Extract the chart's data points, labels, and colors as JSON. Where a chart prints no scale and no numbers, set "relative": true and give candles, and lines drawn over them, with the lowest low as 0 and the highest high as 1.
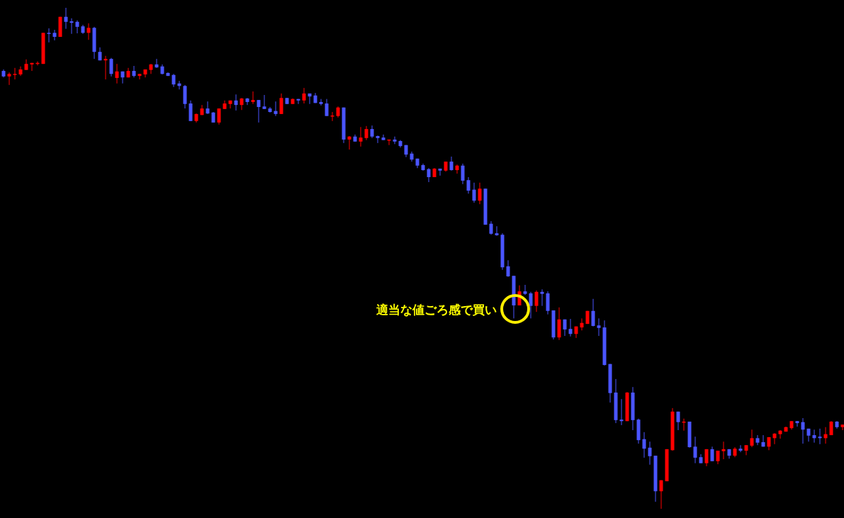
{
  "chart_data": {
    "type": "candlestick",
    "relative": true,
    "annotations": [
      "適当な値ごろ感で買い"
    ],
    "categories": [
      null,
      null,
      null,
      null,
      null,
      null,
      null,
      null,
      null,
      null,
      null,
      null,
      null,
      null,
      null,
      null,
      null,
      null,
      null,
      null,
      null,
      null,
      null,
      null,
      null,
      null,
      null,
      null,
      null,
      null,
      null,
      null,
      null,
      null,
      null,
      null,
      null,
      null,
      null,
      null,
      null,
      null,
      null,
      null,
      null,
      null,
      null,
      null,
      null,
      null,
      null,
      null,
      null,
      null,
      null,
      null,
      null,
      null,
      null,
      null,
      null,
      null,
      null,
      null,
      null,
      null,
      null,
      null,
      null,
      null,
      null,
      null,
      null,
      null,
      null,
      null,
      null,
      null,
      null,
      null,
      null,
      null,
      null,
      null,
      null,
      null,
      null,
      null,
      null,
      null,
      null,
      null,
      null,
      null,
      null,
      null,
      null,
      null,
      null,
      null,
      null,
      null,
      null,
      null,
      null,
      null,
      null,
      null,
      null,
      null,
      null,
      null,
      null,
      null,
      null,
      null,
      null,
      null,
      null,
      null,
      null,
      null,
      null,
      null,
      null,
      null,
      null,
      null,
      null,
      null,
      null,
      null,
      null,
      null,
      null,
      null,
      null,
      null,
      null,
      null,
      null,
      null,
      null,
      null,
      null,
      null,
      null,
      null,
      null
    ],
    "ohlc": [
      [
        0.874,
        0.877,
        0.861,
        0.863
      ],
      [
        0.863,
        0.871,
        0.846,
        0.868
      ],
      [
        0.867,
        0.88,
        0.857,
        0.868
      ],
      [
        0.867,
        0.883,
        0.864,
        0.877
      ],
      [
        0.876,
        0.897,
        0.876,
        0.888
      ],
      [
        0.887,
        0.89,
        0.874,
        0.89
      ],
      [
        0.888,
        0.893,
        0.885,
        0.89
      ],
      [
        0.888,
        0.95,
        0.888,
        0.95
      ],
      [
        0.95,
        0.959,
        0.931,
        0.949
      ],
      [
        0.95,
        0.956,
        0.935,
        0.942
      ],
      [
        0.942,
        0.982,
        0.942,
        0.982
      ],
      [
        0.982,
        1,
        0.958,
        0.972
      ],
      [
        0.973,
        0.979,
        0.948,
        0.97
      ],
      [
        0.972,
        0.975,
        0.949,
        0.962
      ],
      [
        0.963,
        0.966,
        0.948,
        0.95
      ],
      [
        0.95,
        0.969,
        0.936,
        0.96
      ],
      [
        0.96,
        0.962,
        0.898,
        0.912
      ],
      [
        0.912,
        0.921,
        0.895,
        0.895
      ],
      [
        0.895,
        0.904,
        0.857,
        0.898
      ],
      [
        0.898,
        0.9,
        0.863,
        0.868
      ],
      [
        0.86,
        0.888,
        0.849,
        0.873
      ],
      [
        0.873,
        0.873,
        0.849,
        0.861
      ],
      [
        0.861,
        0.88,
        0.861,
        0.874
      ],
      [
        0.874,
        0.884,
        0.861,
        0.864
      ],
      [
        0.864,
        0.868,
        0.857,
        0.868
      ],
      [
        0.867,
        0.877,
        0.861,
        0.877
      ],
      [
        0.876,
        0.888,
        0.868,
        0.887
      ],
      [
        0.887,
        0.898,
        0.88,
        0.881
      ],
      [
        0.883,
        0.887,
        0.867,
        0.868
      ],
      [
        0.87,
        0.871,
        0.864,
        0.864
      ],
      [
        0.866,
        0.868,
        0.842,
        0.847
      ],
      [
        0.849,
        0.854,
        0.837,
        0.844
      ],
      [
        0.844,
        0.846,
        0.799,
        0.808
      ],
      [
        0.809,
        0.815,
        0.774,
        0.774
      ],
      [
        0.774,
        0.789,
        0.771,
        0.788
      ],
      [
        0.786,
        0.806,
        0.786,
        0.799
      ],
      [
        0.799,
        0.813,
        0.788,
        0.789
      ],
      [
        0.791,
        0.792,
        0.771,
        0.771
      ],
      [
        0.771,
        0.799,
        0.767,
        0.799
      ],
      [
        0.798,
        0.815,
        0.798,
        0.809
      ],
      [
        0.808,
        0.815,
        0.799,
        0.815
      ],
      [
        0.815,
        0.827,
        0.795,
        0.806
      ],
      [
        0.806,
        0.82,
        0.796,
        0.819
      ],
      [
        0.819,
        0.82,
        0.806,
        0.812
      ],
      [
        0.812,
        0.833,
        0.808,
        0.816
      ],
      [
        0.816,
        0.816,
        0.771,
        0.802
      ],
      [
        0.803,
        0.826,
        0.798,
        0.798
      ],
      [
        0.799,
        0.802,
        0.791,
        0.792
      ],
      [
        0.794,
        0.813,
        0.784,
        0.788
      ],
      [
        0.788,
        0.829,
        0.788,
        0.82
      ],
      [
        0.82,
        0.82,
        0.808,
        0.808
      ],
      [
        0.808,
        0.819,
        0.808,
        0.818
      ],
      [
        0.818,
        0.818,
        0.808,
        0.815
      ],
      [
        0.815,
        0.84,
        0.809,
        0.829
      ],
      [
        0.829,
        0.829,
        0.808,
        0.823
      ],
      [
        0.825,
        0.83,
        0.81,
        0.81
      ],
      [
        0.812,
        0.818,
        0.805,
        0.808
      ],
      [
        0.809,
        0.818,
        0.784,
        0.784
      ],
      [
        0.784,
        0.792,
        0.774,
        0.785
      ],
      [
        0.784,
        0.803,
        0.781,
        0.801
      ],
      [
        0.801,
        0.801,
        0.73,
        0.737
      ],
      [
        0.737,
        0.744,
        0.717,
        0.743
      ],
      [
        0.743,
        0.747,
        0.733,
        0.733
      ],
      [
        0.733,
        0.762,
        0.723,
        0.741
      ],
      [
        0.74,
        0.764,
        0.736,
        0.758
      ],
      [
        0.758,
        0.765,
        0.74,
        0.743
      ],
      [
        0.744,
        0.745,
        0.73,
        0.74
      ],
      [
        0.741,
        0.747,
        0.736,
        0.736
      ],
      [
        0.736,
        0.737,
        0.726,
        0.737
      ],
      [
        0.737,
        0.743,
        0.728,
        0.733
      ],
      [
        0.734,
        0.736,
        0.721,
        0.724
      ],
      [
        0.726,
        0.726,
        0.702,
        0.707
      ],
      [
        0.709,
        0.713,
        0.693,
        0.697
      ],
      [
        0.699,
        0.699,
        0.68,
        0.685
      ],
      [
        0.686,
        0.689,
        0.675,
        0.676
      ],
      [
        0.678,
        0.68,
        0.652,
        0.662
      ],
      [
        0.662,
        0.68,
        0.662,
        0.679
      ],
      [
        0.679,
        0.679,
        0.665,
        0.675
      ],
      [
        0.675,
        0.693,
        0.673,
        0.693
      ],
      [
        0.693,
        0.703,
        0.675,
        0.676
      ],
      [
        0.676,
        0.687,
        0.669,
        0.685
      ],
      [
        0.685,
        0.689,
        0.648,
        0.655
      ],
      [
        0.656,
        0.662,
        0.629,
        0.635
      ],
      [
        0.637,
        0.651,
        0.611,
        0.615
      ],
      [
        0.615,
        0.651,
        0.608,
        0.639
      ],
      [
        0.639,
        0.639,
        0.567,
        0.567
      ],
      [
        0.569,
        0.574,
        0.547,
        0.549
      ],
      [
        0.55,
        0.564,
        0.545,
        0.546
      ],
      [
        0.547,
        0.55,
        0.477,
        0.482
      ],
      [
        0.484,
        0.496,
        0.463,
        0.464
      ],
      [
        0.465,
        0.465,
        0.38,
        0.406
      ],
      [
        0.406,
        0.446,
        0.406,
        0.434
      ],
      [
        0.434,
        0.447,
        0.427,
        0.429
      ],
      [
        0.43,
        0.433,
        0.38,
        0.405
      ],
      [
        0.405,
        0.436,
        0.393,
        0.433
      ],
      [
        0.433,
        0.438,
        0.405,
        0.429
      ],
      [
        0.43,
        0.434,
        0.388,
        0.395
      ],
      [
        0.396,
        0.396,
        0.338,
        0.342
      ],
      [
        0.342,
        0.402,
        0.337,
        0.378
      ],
      [
        0.378,
        0.378,
        0.345,
        0.358
      ],
      [
        0.359,
        0.379,
        0.344,
        0.349
      ],
      [
        0.349,
        0.364,
        0.341,
        0.364
      ],
      [
        0.362,
        0.38,
        0.356,
        0.371
      ],
      [
        0.369,
        0.395,
        0.369,
        0.395
      ],
      [
        0.395,
        0.419,
        0.364,
        0.365
      ],
      [
        0.366,
        0.38,
        0.345,
        0.361
      ],
      [
        0.362,
        0.376,
        0.286,
        0.287
      ],
      [
        0.289,
        0.289,
        0.212,
        0.231
      ],
      [
        0.232,
        0.259,
        0.171,
        0.177
      ],
      [
        0.178,
        0.219,
        0.167,
        0.175
      ],
      [
        0.175,
        0.233,
        0.175,
        0.232
      ],
      [
        0.232,
        0.243,
        0.157,
        0.177
      ],
      [
        0.178,
        0.18,
        0.13,
        0.137
      ],
      [
        0.139,
        0.153,
        0.102,
        0.12
      ],
      [
        0.122,
        0.134,
        0.088,
        0.105
      ],
      [
        0.106,
        0.106,
        0.014,
        0.035
      ],
      [
        0.035,
        0.057,
        0,
        0.057
      ],
      [
        0.055,
        0.119,
        0.055,
        0.119
      ],
      [
        0.117,
        0.201,
        0.116,
        0.194
      ],
      [
        0.194,
        0.194,
        0.157,
        0.173
      ],
      [
        0.173,
        0.18,
        0.156,
        0.174
      ],
      [
        0.174,
        0.174,
        0.122,
        0.123
      ],
      [
        0.124,
        0.144,
        0.091,
        0.102
      ],
      [
        0.103,
        0.109,
        0.091,
        0.091
      ],
      [
        0.091,
        0.119,
        0.085,
        0.119
      ],
      [
        0.119,
        0.124,
        0.095,
        0.095
      ],
      [
        0.095,
        0.116,
        0.089,
        0.116
      ],
      [
        0.115,
        0.134,
        0.099,
        0.119
      ],
      [
        0.119,
        0.119,
        0.1,
        0.106
      ],
      [
        0.106,
        0.123,
        0.103,
        0.12
      ],
      [
        0.12,
        0.127,
        0.113,
        0.116
      ],
      [
        0.116,
        0.127,
        0.107,
        0.127
      ],
      [
        0.126,
        0.158,
        0.123,
        0.141
      ],
      [
        0.141,
        0.147,
        0.127,
        0.132
      ],
      [
        0.133,
        0.147,
        0.124,
        0.124
      ],
      [
        0.124,
        0.143,
        0.117,
        0.143
      ],
      [
        0.141,
        0.151,
        0.129,
        0.15
      ],
      [
        0.149,
        0.157,
        0.14,
        0.156
      ],
      [
        0.154,
        0.164,
        0.154,
        0.163
      ],
      [
        0.161,
        0.175,
        0.158,
        0.175
      ],
      [
        0.175,
        0.175,
        0.164,
        0.171
      ],
      [
        0.173,
        0.181,
        0.13,
        0.158
      ],
      [
        0.16,
        0.16,
        0.134,
        0.146
      ],
      [
        0.147,
        0.158,
        0.132,
        0.141
      ],
      [
        0.144,
        0.16,
        0.129,
        0.141
      ],
      [
        0.141,
        0.163,
        0.13,
        0.149
      ],
      [
        0.147,
        0.175,
        0.147,
        0.174
      ],
      [
        0.174,
        0.175,
        0.16,
        0.163
      ],
      [
        0.163,
        0.168,
        0.157,
        0.168
      ]
    ],
    "colors": [
      "#4a55ff",
      "#ff0000",
      "#ff0000",
      "#ff0000",
      "#ff0000",
      "#ff0000",
      "#ff0000",
      "#ff0000",
      "#4a55ff",
      "#4a55ff",
      "#ff0000",
      "#4a55ff",
      "#4a55ff",
      "#4a55ff",
      "#4a55ff",
      "#ff0000",
      "#4a55ff",
      "#4a55ff",
      "#ff0000",
      "#4a55ff",
      "#ff0000",
      "#4a55ff",
      "#ff0000",
      "#4a55ff",
      "#ff0000",
      "#ff0000",
      "#ff0000",
      "#4a55ff",
      "#4a55ff",
      "#4a55ff",
      "#4a55ff",
      "#4a55ff",
      "#4a55ff",
      "#4a55ff",
      "#ff0000",
      "#ff0000",
      "#4a55ff",
      "#4a55ff",
      "#ff0000",
      "#ff0000",
      "#ff0000",
      "#4a55ff",
      "#ff0000",
      "#4a55ff",
      "#ff0000",
      "#4a55ff",
      "#4a55ff",
      "#4a55ff",
      "#4a55ff",
      "#ff0000",
      "#4a55ff",
      "#ff0000",
      "#4a55ff",
      "#ff0000",
      "#4a55ff",
      "#4a55ff",
      "#4a55ff",
      "#4a55ff",
      "#ff0000",
      "#ff0000",
      "#4a55ff",
      "#ff0000",
      "#4a55ff",
      "#ff0000",
      "#ff0000",
      "#4a55ff",
      "#4a55ff",
      "#4a55ff",
      "#ff0000",
      "#4a55ff",
      "#4a55ff",
      "#4a55ff",
      "#4a55ff",
      "#4a55ff",
      "#4a55ff",
      "#4a55ff",
      "#ff0000",
      "#4a55ff",
      "#ff0000",
      "#4a55ff",
      "#ff0000",
      "#4a55ff",
      "#4a55ff",
      "#4a55ff",
      "#ff0000",
      "#4a55ff",
      "#4a55ff",
      "#4a55ff",
      "#4a55ff",
      "#4a55ff",
      "#4a55ff",
      "#ff0000",
      "#4a55ff",
      "#4a55ff",
      "#ff0000",
      "#4a55ff",
      "#4a55ff",
      "#4a55ff",
      "#ff0000",
      "#4a55ff",
      "#4a55ff",
      "#ff0000",
      "#ff0000",
      "#ff0000",
      "#4a55ff",
      "#4a55ff",
      "#4a55ff",
      "#4a55ff",
      "#4a55ff",
      "#4a55ff",
      "#ff0000",
      "#4a55ff",
      "#4a55ff",
      "#4a55ff",
      "#4a55ff",
      "#4a55ff",
      "#ff0000",
      "#ff0000",
      "#ff0000",
      "#4a55ff",
      "#ff0000",
      "#4a55ff",
      "#4a55ff",
      "#4a55ff",
      "#ff0000",
      "#4a55ff",
      "#ff0000",
      "#ff0000",
      "#4a55ff",
      "#ff0000",
      "#4a55ff",
      "#ff0000",
      "#ff0000",
      "#4a55ff",
      "#4a55ff",
      "#ff0000",
      "#ff0000",
      "#ff0000",
      "#ff0000",
      "#ff0000",
      "#4a55ff",
      "#4a55ff",
      "#4a55ff",
      "#4a55ff",
      "#4a55ff",
      "#ff0000",
      "#ff0000",
      "#4a55ff",
      "#ff0000"
    ]
  }
}
